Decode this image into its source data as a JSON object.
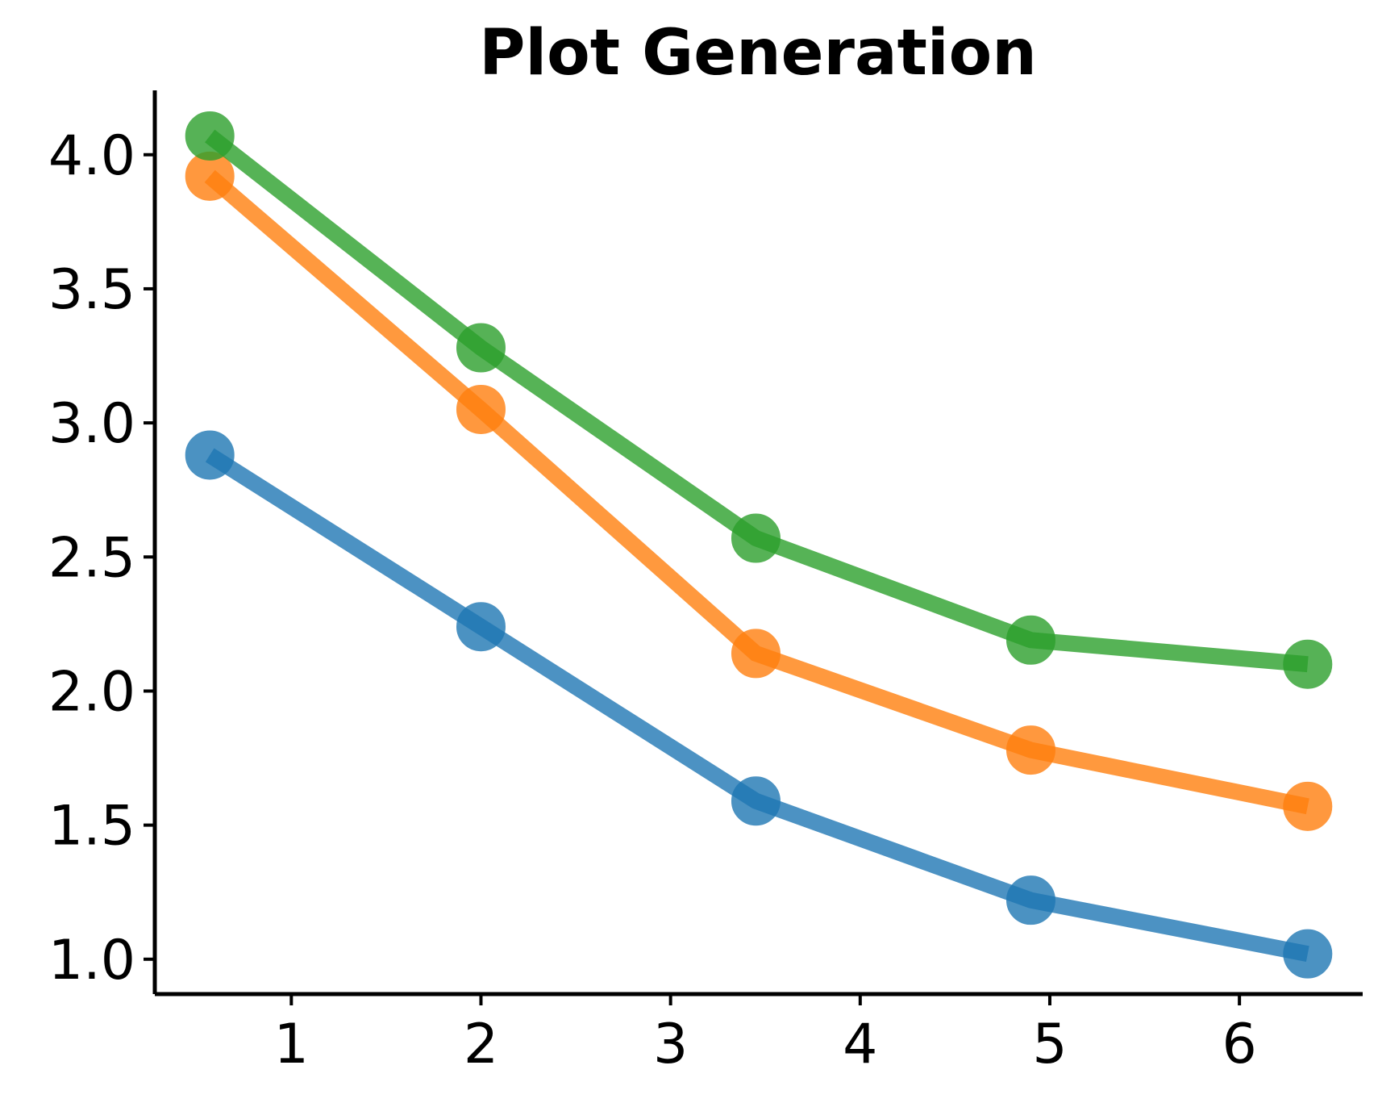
{
  "chart_data": {
    "type": "line",
    "title": "Plot Generation",
    "xlabel": "",
    "ylabel": "",
    "xlim": [
      0.28,
      6.65
    ],
    "ylim": [
      0.87,
      4.24
    ],
    "x_ticks": [
      1,
      2,
      3,
      4,
      5,
      6
    ],
    "y_ticks": [
      1.0,
      1.5,
      2.0,
      2.5,
      3.0,
      3.5,
      4.0
    ],
    "x_tick_labels": [
      "1",
      "2",
      "3",
      "4",
      "5",
      "6"
    ],
    "y_tick_labels": [
      "1.0",
      "1.5",
      "2.0",
      "2.5",
      "3.0",
      "3.5",
      "4.0"
    ],
    "grid": false,
    "legend": "none",
    "series": [
      {
        "color": "#1f77b4",
        "x": [
          0.57,
          2.0,
          3.45,
          4.9,
          6.36
        ],
        "y": [
          2.88,
          2.24,
          1.59,
          1.22,
          1.02
        ]
      },
      {
        "color": "#ff7f0e",
        "x": [
          0.57,
          2.0,
          3.45,
          4.9,
          6.36
        ],
        "y": [
          3.92,
          3.05,
          2.14,
          1.78,
          1.57
        ]
      },
      {
        "color": "#2ca02c",
        "x": [
          0.57,
          2.0,
          3.45,
          4.9,
          6.36
        ],
        "y": [
          4.07,
          3.28,
          2.57,
          2.19,
          2.1
        ]
      }
    ]
  }
}
